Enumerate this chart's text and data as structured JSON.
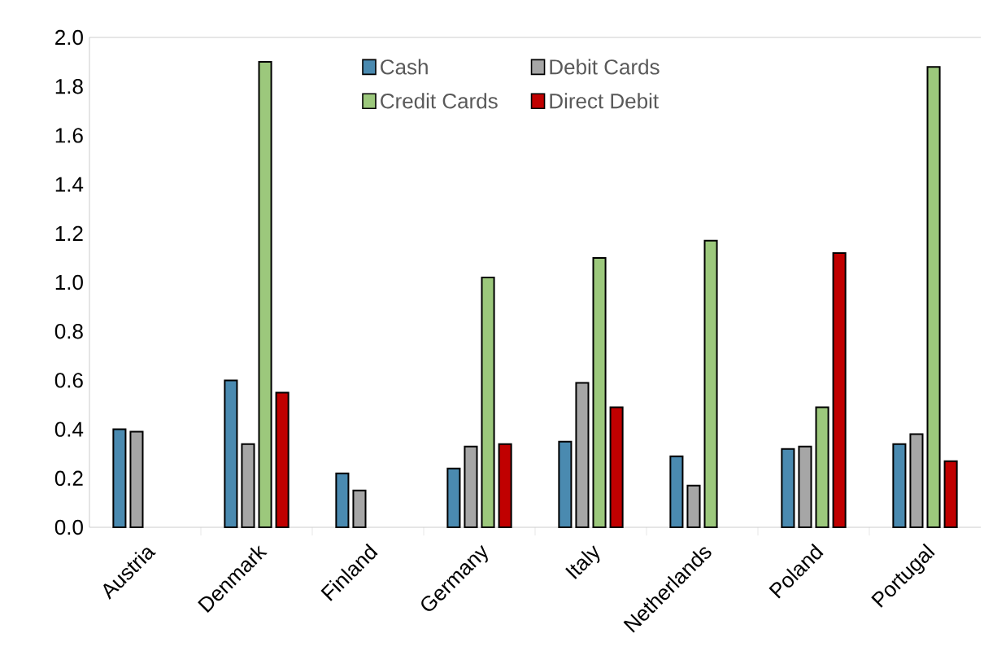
{
  "chart_data": {
    "type": "bar",
    "categories": [
      "Austria",
      "Denmark",
      "Finland",
      "Germany",
      "Italy",
      "Netherlands",
      "Poland",
      "Portugal"
    ],
    "series": [
      {
        "name": "Cash",
        "color": "#4a8ab0",
        "values": [
          0.4,
          0.6,
          0.22,
          0.24,
          0.35,
          0.29,
          0.32,
          0.34
        ]
      },
      {
        "name": "Debit Cards",
        "color": "#a6a6a6",
        "values": [
          0.39,
          0.34,
          0.15,
          0.33,
          0.59,
          0.17,
          0.33,
          0.38
        ]
      },
      {
        "name": "Credit Cards",
        "color": "#9cc87c",
        "values": [
          null,
          1.9,
          null,
          1.02,
          1.1,
          1.17,
          0.49,
          1.88
        ]
      },
      {
        "name": "Direct Debit",
        "color": "#c00000",
        "values": [
          null,
          0.55,
          null,
          0.34,
          0.49,
          null,
          1.12,
          0.27
        ]
      }
    ],
    "ylim": [
      0,
      2.0
    ],
    "yticks": [
      {
        "value": 0,
        "label": "0.0"
      },
      {
        "value": 0.2,
        "label": "0.2"
      },
      {
        "value": 0.4,
        "label": "0.4"
      },
      {
        "value": 0.6,
        "label": "0.6"
      },
      {
        "value": 0.8,
        "label": "0.8"
      },
      {
        "value": 1.0,
        "label": "1.0"
      },
      {
        "value": 1.2,
        "label": "1.2"
      },
      {
        "value": 1.4,
        "label": "1.4"
      },
      {
        "value": 1.6,
        "label": "1.6"
      },
      {
        "value": 1.8,
        "label": "1.8"
      },
      {
        "value": 2.0,
        "label": "2.0"
      }
    ],
    "legend": "top",
    "grid": false
  }
}
